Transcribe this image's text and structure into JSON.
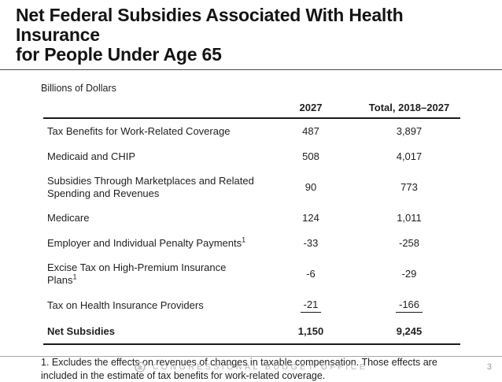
{
  "slide": {
    "title_line1": "Net Federal Subsidies Associated With Health Insurance",
    "title_line2": "for People Under Age 65",
    "units_label": "Billions of Dollars",
    "page_number": "3"
  },
  "table": {
    "column_headers": [
      "2027",
      "Total, 2018–2027"
    ],
    "rows": [
      {
        "label": "Tax Benefits for Work-Related Coverage",
        "sup": "",
        "y2027": "487",
        "total": "3,897",
        "bold": false,
        "rule_under": false
      },
      {
        "label": "Medicaid and CHIP",
        "sup": "",
        "y2027": "508",
        "total": "4,017",
        "bold": false,
        "rule_under": false
      },
      {
        "label": "Subsidies Through Marketplaces and Related Spending and Revenues",
        "sup": "",
        "y2027": "90",
        "total": "773",
        "bold": false,
        "rule_under": false
      },
      {
        "label": "Medicare",
        "sup": "",
        "y2027": "124",
        "total": "1,011",
        "bold": false,
        "rule_under": false
      },
      {
        "label": "Employer and Individual Penalty Payments",
        "sup": "1",
        "y2027": "-33",
        "total": "-258",
        "bold": false,
        "rule_under": false
      },
      {
        "label": "Excise Tax on High-Premium Insurance Plans",
        "sup": "1",
        "y2027": "-6",
        "total": "-29",
        "bold": false,
        "rule_under": false
      },
      {
        "label": "Tax on Health Insurance Providers",
        "sup": "",
        "y2027": "-21",
        "total": "-166",
        "bold": false,
        "rule_under": true
      },
      {
        "label": "Net Subsidies",
        "sup": "",
        "y2027": "1,150",
        "total": "9,245",
        "bold": true,
        "rule_under": false
      }
    ]
  },
  "footnote": "1. Excludes the effects on revenues of changes in taxable compensation. Those effects are included in the estimate of tax benefits for work-related coverage.",
  "footer": {
    "organization": "CONGRESSIONAL BUDGET OFFICE",
    "logo": "cbo-logo"
  },
  "colors": {
    "text": "#1a1a1a",
    "rule_dark": "#1a1a1a",
    "title_rule": "#4a4a4a",
    "footer_gray": "#b5b5b5",
    "footer_line": "#a8a8a8"
  }
}
